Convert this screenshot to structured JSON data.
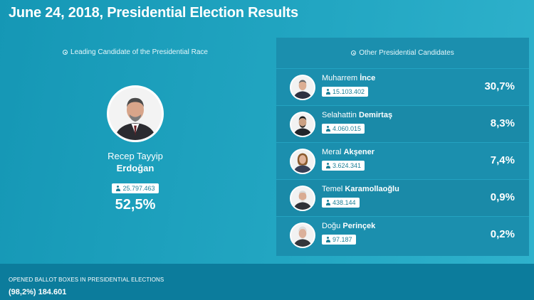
{
  "page": {
    "title": "June 24, 2018, Presidential Election Results"
  },
  "leader": {
    "section_label": "Leading Candidate of the Presidential Race",
    "first_name": "Recep Tayyip",
    "last_name": "Erdoğan",
    "votes": "25.797.463",
    "percent": "52,5%",
    "vote_share": 52.5
  },
  "others": {
    "section_label": "Other Presidential Candidates",
    "candidates": [
      {
        "first_name": "Muharrem",
        "last_name": "İnce",
        "votes": "15.103.402",
        "percent": "30,7%"
      },
      {
        "first_name": "Selahattin",
        "last_name": "Demirtaş",
        "votes": "4.060.015",
        "percent": "8,3%"
      },
      {
        "first_name": "Meral",
        "last_name": "Akşener",
        "votes": "3.624.341",
        "percent": "7,4%"
      },
      {
        "first_name": "Temel",
        "last_name": "Karamollaoğlu",
        "votes": "438.144",
        "percent": "0,9%"
      },
      {
        "first_name": "Doğu",
        "last_name": "Perinçek",
        "votes": "97.187",
        "percent": "0,2%"
      }
    ]
  },
  "footer": {
    "label": "OPENED BALLOT BOXES IN PRESIDENTIAL ELECTIONS",
    "value": "(98,2%) 184.601"
  },
  "icons": {
    "section": "radio-dot-icon",
    "votes": "person-icon"
  },
  "colors": {
    "background": "#22a6c2",
    "panel": "#1b8fae",
    "footer": "#0c7c9c",
    "badge_text": "#1a7f97"
  }
}
